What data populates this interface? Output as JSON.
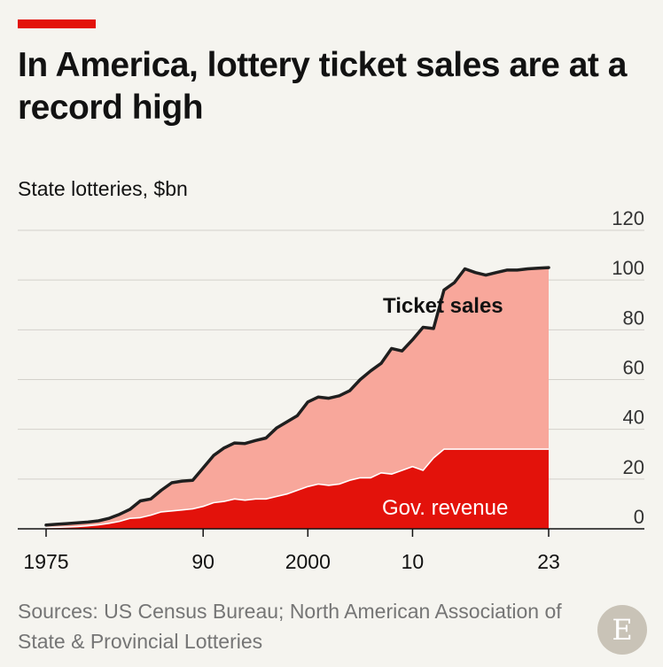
{
  "header": {
    "title": "In America, lottery ticket sales are at a record high",
    "subtitle": "State lotteries, $bn"
  },
  "footer": {
    "source": "Sources: US Census Bureau; North American Association of State & Provincial Lotteries",
    "logo_letter": "E"
  },
  "colors": {
    "ticket_sales_fill": "#f8a79b",
    "ticket_sales_line": "#1f1f1f",
    "gov_revenue_fill": "#e3120b",
    "accent": "#e3120b"
  },
  "chart_data": {
    "type": "area",
    "title": "In America, lottery ticket sales are at a record high",
    "ylabel": "State lotteries, $bn",
    "ylim": [
      0,
      120
    ],
    "xlim": [
      1972,
      2027
    ],
    "y_ticks": [
      0,
      20,
      40,
      60,
      80,
      100,
      120
    ],
    "x_ticks": [
      1975,
      1990,
      2000,
      2010,
      2023
    ],
    "x_tick_labels": [
      "1975",
      "90",
      "2000",
      "10",
      "23"
    ],
    "grid": true,
    "x": [
      1975,
      1976,
      1977,
      1978,
      1979,
      1980,
      1981,
      1982,
      1983,
      1984,
      1985,
      1986,
      1987,
      1988,
      1989,
      1990,
      1991,
      1992,
      1993,
      1994,
      1995,
      1996,
      1997,
      1998,
      1999,
      2000,
      2001,
      2002,
      2003,
      2004,
      2005,
      2006,
      2007,
      2008,
      2009,
      2010,
      2011,
      2012,
      2013,
      2014,
      2015,
      2016,
      2017,
      2018,
      2019,
      2020,
      2021,
      2022,
      2023
    ],
    "series": [
      {
        "name": "Ticket sales",
        "values": [
          1.5,
          1.8,
          2.1,
          2.4,
          2.7,
          3.2,
          4.2,
          5.8,
          7.8,
          11.2,
          12.0,
          15.5,
          18.5,
          19.2,
          19.5,
          24.5,
          29.5,
          32.5,
          34.5,
          34.3,
          35.5,
          36.5,
          40.5,
          43.0,
          45.5,
          51.0,
          53.0,
          52.5,
          53.5,
          55.5,
          60.0,
          63.5,
          66.5,
          72.5,
          71.5,
          76.0,
          81.0,
          80.5,
          96.0,
          99.0,
          104.5,
          103.0,
          102.0,
          103.0,
          104.0,
          104.0,
          104.5,
          104.8,
          105.0
        ]
      },
      {
        "name": "Gov. revenue",
        "values": [
          0.5,
          0.6,
          0.7,
          0.9,
          1.2,
          1.6,
          2.2,
          3.0,
          4.2,
          4.5,
          5.5,
          6.8,
          7.2,
          7.6,
          8.0,
          9.0,
          10.5,
          11.0,
          12.0,
          11.5,
          12.0,
          12.0,
          13.0,
          14.0,
          15.5,
          17.0,
          18.0,
          17.5,
          18.0,
          19.5,
          20.5,
          20.5,
          22.5,
          22.0,
          23.5,
          25.0,
          23.5,
          28.5,
          32.0,
          32.0,
          32.0,
          32.0,
          32.0,
          32.0,
          32.0,
          32.0,
          32.0,
          32.0,
          32.0
        ]
      }
    ],
    "annotations": [
      "Ticket sales",
      "Gov. revenue"
    ]
  }
}
